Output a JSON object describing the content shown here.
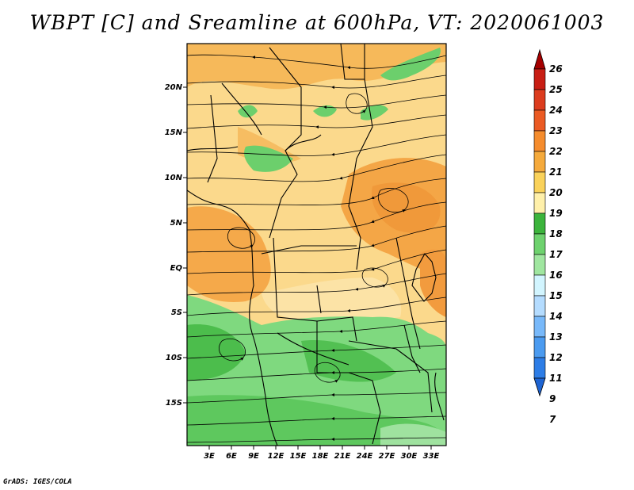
{
  "title": "WBPT [C] and Sreamline at 600hPa, VT: 2020061003",
  "footer": "GrADS: IGES/COLA",
  "map": {
    "lat_ticks": [
      "20N",
      "15N",
      "10N",
      "5N",
      "EQ",
      "5S",
      "10S",
      "15S"
    ],
    "lon_ticks": [
      "3E",
      "6E",
      "9E",
      "12E",
      "15E",
      "18E",
      "21E",
      "24E",
      "27E",
      "30E",
      "33E"
    ]
  },
  "colorbar": {
    "levels": [
      "26",
      "25",
      "24",
      "23",
      "22",
      "21",
      "20",
      "19",
      "18",
      "17",
      "16",
      "15",
      "14",
      "13",
      "12",
      "11",
      "9",
      "7"
    ],
    "colors": [
      "#a50000",
      "#c81e14",
      "#dc3c1e",
      "#eb5a23",
      "#f58c2d",
      "#f5aa3c",
      "#fad25a",
      "#fff0aa",
      "#3cb43c",
      "#6ed26e",
      "#a0e6a0",
      "#d2f5ff",
      "#b4dcff",
      "#78b9fa",
      "#4b9bf0",
      "#2d7de6",
      "#1e64d2"
    ]
  }
}
